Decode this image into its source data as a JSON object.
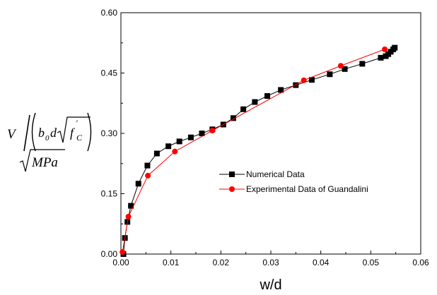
{
  "chart_data": {
    "type": "line",
    "xlabel": "w/d",
    "xlim": [
      0,
      0.06
    ],
    "ylim": [
      0,
      0.6
    ],
    "x_ticks": [
      "0.00",
      "0.01",
      "0.02",
      "0.03",
      "0.04",
      "0.05",
      "0.06"
    ],
    "y_ticks": [
      "0.00",
      "0.15",
      "0.30",
      "0.45",
      "0.60"
    ],
    "ylabel_parts": {
      "v": "V",
      "b": "b",
      "sub0": "0",
      "d": "d",
      "f": "f",
      "prime": "'",
      "sub_c": "C",
      "mpa": "MPa"
    },
    "legend_position": "center-right",
    "series": [
      {
        "name": "Numerical Data",
        "color": "#000000",
        "marker": "square",
        "x": [
          0.0005,
          0.0008,
          0.0013,
          0.002,
          0.0035,
          0.0053,
          0.0072,
          0.0095,
          0.0117,
          0.014,
          0.0162,
          0.0183,
          0.0205,
          0.0225,
          0.0245,
          0.0268,
          0.0293,
          0.032,
          0.035,
          0.0382,
          0.0418,
          0.0448,
          0.0483,
          0.052,
          0.053,
          0.0535,
          0.054,
          0.0545,
          0.0548
        ],
        "y": [
          0.0,
          0.04,
          0.08,
          0.12,
          0.175,
          0.22,
          0.25,
          0.268,
          0.28,
          0.29,
          0.3,
          0.31,
          0.322,
          0.338,
          0.36,
          0.378,
          0.393,
          0.408,
          0.42,
          0.433,
          0.447,
          0.46,
          0.473,
          0.488,
          0.492,
          0.497,
          0.503,
          0.509,
          0.513
        ]
      },
      {
        "name": "Experimental Data of Guandalini",
        "color": "#ff0000",
        "marker": "circle",
        "x": [
          0.0003,
          0.0015,
          0.0054,
          0.0108,
          0.0183,
          0.0366,
          0.044,
          0.0528
        ],
        "y": [
          0.005,
          0.093,
          0.195,
          0.255,
          0.307,
          0.432,
          0.468,
          0.509
        ]
      }
    ]
  }
}
